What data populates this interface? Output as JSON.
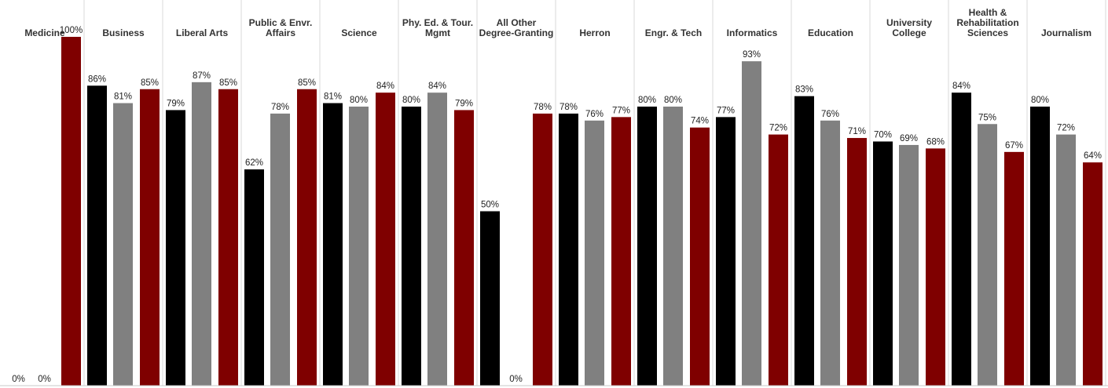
{
  "colors": {
    "series1": "#000000",
    "series2": "#808080",
    "series3": "#7f0000",
    "divider": "#d9d9d9",
    "baseline": "#c8c8c8"
  },
  "chart_data": {
    "type": "bar",
    "title": "",
    "xlabel": "",
    "ylabel": "",
    "ylim": [
      0,
      100
    ],
    "grid": false,
    "legend": "none",
    "value_format": "percent",
    "categories": [
      "Medicine",
      "Business",
      "Liberal Arts",
      "Public & Envr.\nAffairs",
      "Science",
      "Phy. Ed. & Tour.\nMgmt",
      "All Other\nDegree-Granting",
      "Herron",
      "Engr. & Tech",
      "Informatics",
      "Education",
      "University\nCollege",
      "Health &\nRehabilitation\nSciences",
      "Journalism"
    ],
    "series": [
      {
        "values": [
          0,
          86,
          79,
          62,
          81,
          80,
          50,
          78,
          80,
          77,
          83,
          70,
          84,
          80
        ]
      },
      {
        "values": [
          0,
          81,
          87,
          78,
          80,
          84,
          0,
          76,
          80,
          93,
          76,
          69,
          75,
          72
        ]
      },
      {
        "values": [
          100,
          85,
          85,
          85,
          84,
          79,
          78,
          77,
          74,
          72,
          71,
          68,
          67,
          64
        ]
      }
    ]
  }
}
